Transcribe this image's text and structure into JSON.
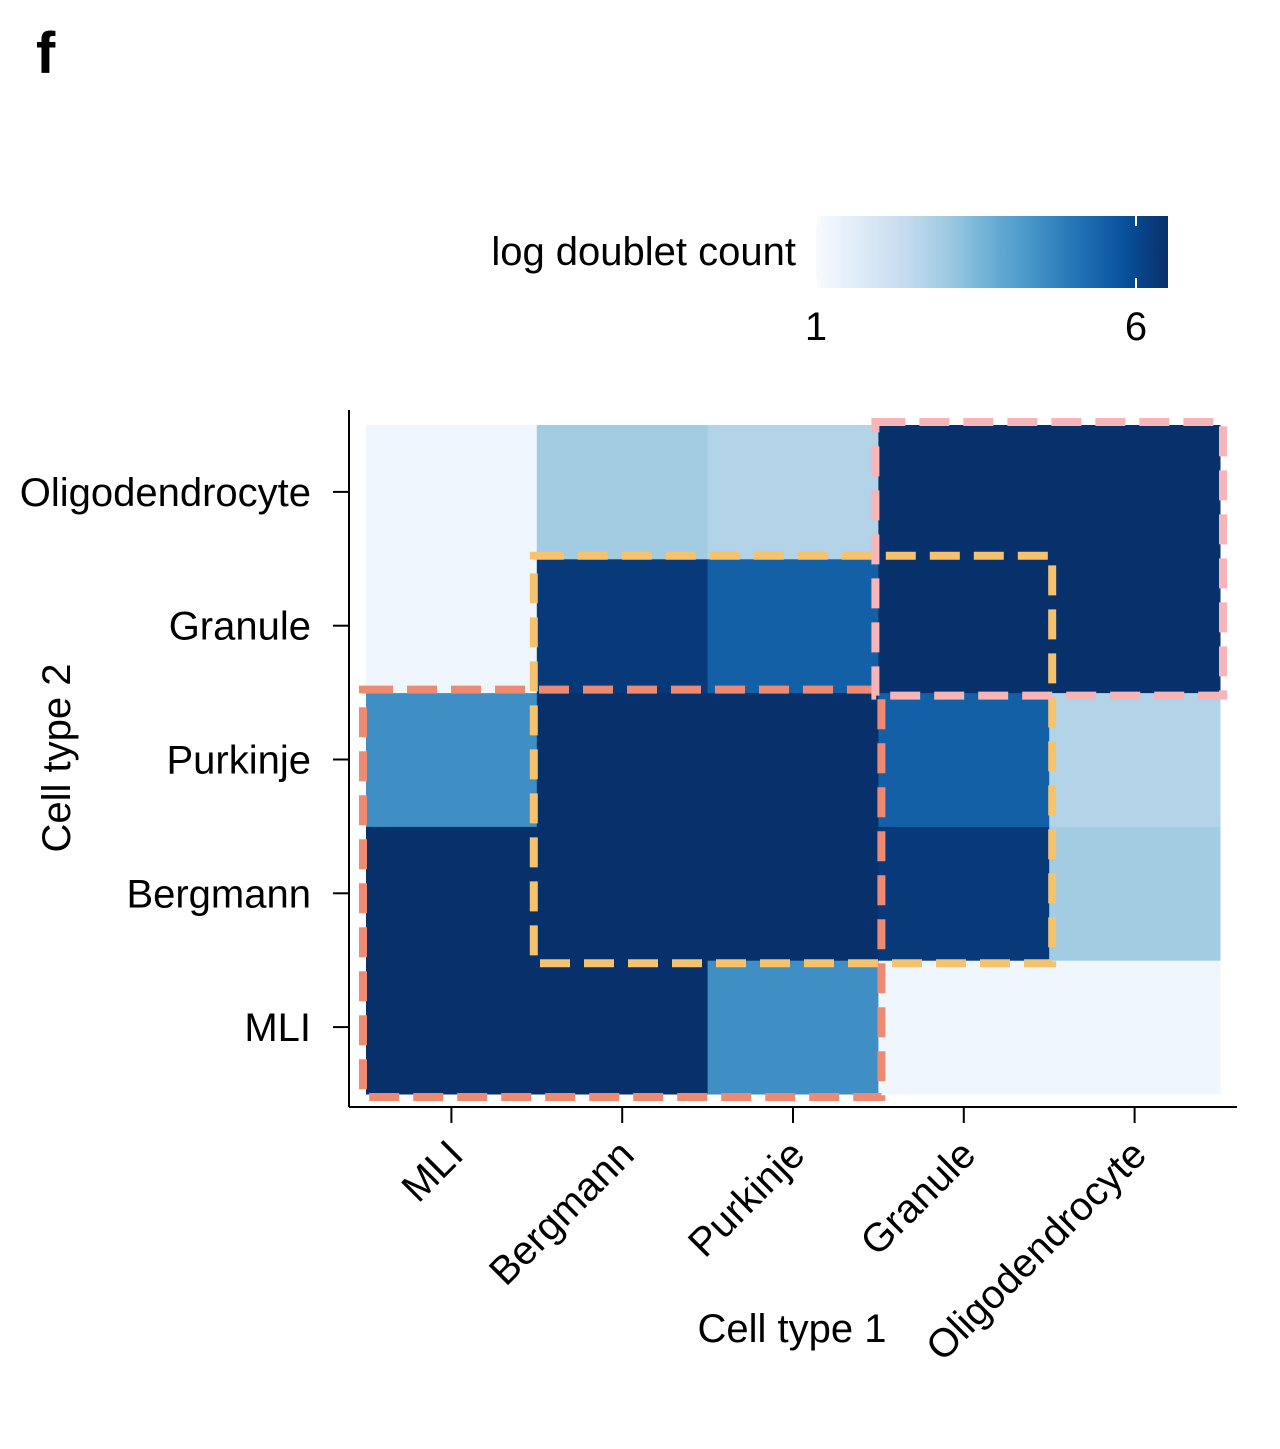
{
  "panel_label": "f",
  "chart_data": {
    "type": "heatmap",
    "xlabel": "Cell type 1",
    "ylabel": "Cell type 2",
    "categories": [
      "MLI",
      "Bergmann",
      "Purkinje",
      "Granule",
      "Oligodendrocyte"
    ],
    "values": [
      [
        6.5,
        6.5,
        4.5,
        1.2,
        1.2
      ],
      [
        6.5,
        6.5,
        6.5,
        6.3,
        3.0
      ],
      [
        4.5,
        6.5,
        6.5,
        5.5,
        2.7
      ],
      [
        1.2,
        6.3,
        5.5,
        6.5,
        6.5
      ],
      [
        1.2,
        3.0,
        2.7,
        6.5,
        6.5
      ]
    ],
    "values_note": "values[row][col]; rows = Cell type 2 (MLI..Oligodendrocyte), cols = Cell type 1",
    "colorbar": {
      "title": "log doublet count",
      "min": 1,
      "max": 6.5,
      "ticks": [
        1,
        6
      ],
      "colors": [
        "#f7fbff",
        "#deebf7",
        "#c6dbef",
        "#9ecae1",
        "#6baed6",
        "#4292c6",
        "#2171b5",
        "#08519c",
        "#08306b"
      ]
    },
    "annotations": [
      {
        "name": "group-mli-bergmann-purkinje",
        "color": "#ef8a72",
        "cols": [
          0,
          2
        ],
        "rows": [
          0,
          2
        ]
      },
      {
        "name": "group-bergmann-purkinje-granule",
        "color": "#f6c26b",
        "cols": [
          1,
          3
        ],
        "rows": [
          1,
          3
        ]
      },
      {
        "name": "group-granule-oligodendrocyte",
        "color": "#f7b5b8",
        "cols": [
          3,
          4
        ],
        "rows": [
          3,
          4
        ]
      }
    ]
  }
}
